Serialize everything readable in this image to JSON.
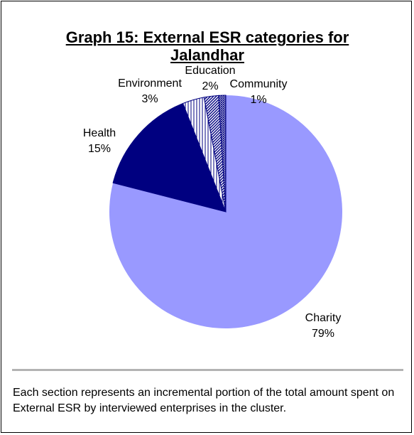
{
  "chart_data": {
    "type": "pie",
    "title": "Graph 15: External ESR categories for Jalandhar",
    "slices": [
      {
        "name": "Charity",
        "value": 79,
        "label": "79%",
        "color": "#9999ff",
        "pattern": "solid"
      },
      {
        "name": "Health",
        "value": 15,
        "label": "15%",
        "color": "#000080",
        "pattern": "solid"
      },
      {
        "name": "Environment",
        "value": 3,
        "label": "3%",
        "color": "#ffffff",
        "pattern": "vertical-lines"
      },
      {
        "name": "Education",
        "value": 2,
        "label": "2%",
        "color": "#ffffff",
        "pattern": "diagonal-lines"
      },
      {
        "name": "Community",
        "value": 1,
        "label": "1%",
        "color": "#ffffff",
        "pattern": "crosshatch"
      }
    ],
    "start": "12 o'clock",
    "direction": "clockwise",
    "legend": "none (labels beside slices)"
  },
  "caption": "Each section represents an incremental portion of the total amount spent on External ESR by interviewed enterprises in the cluster."
}
